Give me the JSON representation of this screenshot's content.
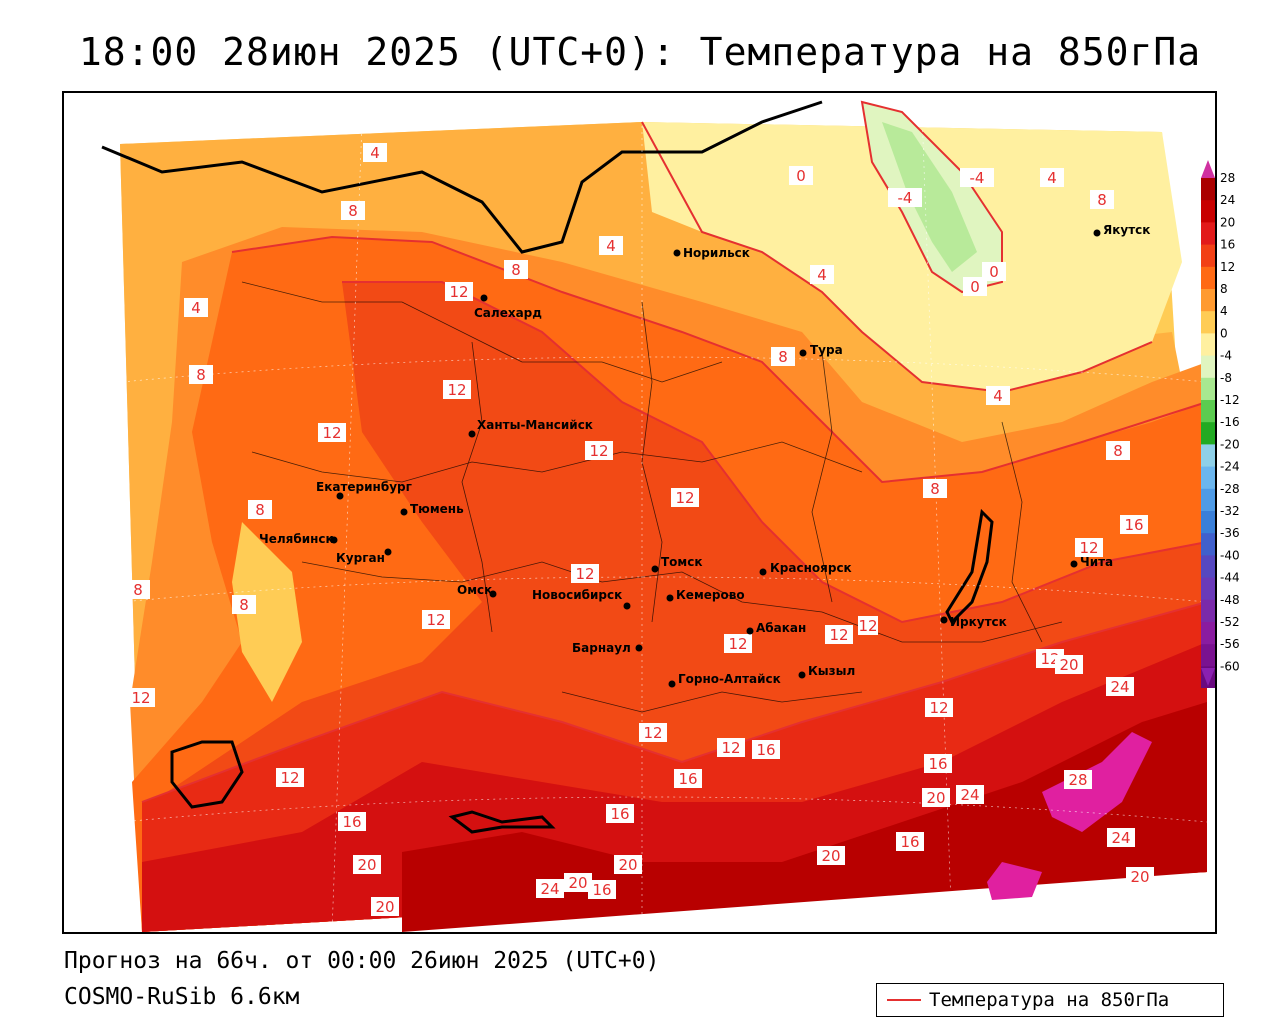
{
  "title": "18:00 28июн 2025 (UTC+0): Температура на 850гПа",
  "footer": {
    "forecast": "Прогноз на 66ч. от 00:00 26июн 2025 (UTC+0)",
    "model": "COSMO-RuSib 6.6км"
  },
  "legend": {
    "label": "Температура на 850гПа",
    "color": "#e53030"
  },
  "colorbar": {
    "labels": [
      "28",
      "24",
      "20",
      "16",
      "12",
      "8",
      "4",
      "0",
      "-4",
      "-8",
      "-12",
      "-16",
      "-20",
      "-24",
      "-28",
      "-32",
      "-36",
      "-40",
      "-44",
      "-48",
      "-52",
      "-56",
      "-60"
    ],
    "colors": [
      "#aa0000",
      "#c80000",
      "#e21a1a",
      "#f24015",
      "#ff6a14",
      "#ff9a30",
      "#ffcc55",
      "#fff0a0",
      "#e0f5c0",
      "#a8e890",
      "#5ccc50",
      "#22aa22",
      "#8fd0e8",
      "#6cb6ee",
      "#4f9be6",
      "#3a7fd8",
      "#4060cc",
      "#5648c0",
      "#6a3ab8",
      "#7a2aaa",
      "#8a1ca0",
      "#7a1290",
      "#6a0a80"
    ],
    "top_color": "#d030a0",
    "bottom_color": "#8a20b0"
  },
  "cities": [
    {
      "name": "Норильск"
    },
    {
      "name": "Якутск"
    },
    {
      "name": "Салехард"
    },
    {
      "name": "Тура"
    },
    {
      "name": "Ханты-Мансийск"
    },
    {
      "name": "Екатеринбург"
    },
    {
      "name": "Тюмень"
    },
    {
      "name": "Челябинск"
    },
    {
      "name": "Курган"
    },
    {
      "name": "Омск"
    },
    {
      "name": "Новосибирск"
    },
    {
      "name": "Томск"
    },
    {
      "name": "Кемерово"
    },
    {
      "name": "Красноярск"
    },
    {
      "name": "Барнаул"
    },
    {
      "name": "Абакан"
    },
    {
      "name": "Кызыл"
    },
    {
      "name": "Горно-Алтайск"
    },
    {
      "name": "Иркутск"
    },
    {
      "name": "Чита"
    }
  ],
  "isotherm_labels": [
    "4",
    "8",
    "12",
    "16",
    "20",
    "24",
    "28",
    "0",
    "-4"
  ]
}
